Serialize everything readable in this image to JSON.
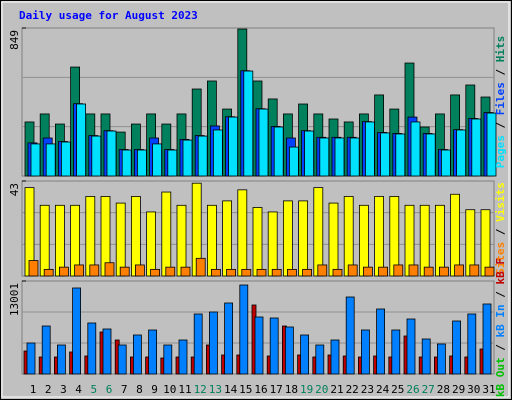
{
  "chart_data": [
    {
      "type": "bar",
      "title": "Daily usage for August 2023",
      "separator": " / ",
      "ylim": [
        0,
        849
      ],
      "yticks": [
        849
      ],
      "series": [
        {
          "name": "Hits",
          "color": "#00805c",
          "values": [
            310,
            356,
            298,
            625,
            356,
            356,
            252,
            298,
            356,
            298,
            356,
            499,
            545,
            384,
            843,
            545,
            442,
            356,
            413,
            356,
            327,
            310,
            356,
            465,
            384,
            648,
            281,
            356,
            465,
            522,
            453
          ]
        },
        {
          "name": "Files",
          "color": "#0040ff",
          "values": [
            190,
            218,
            198,
            415,
            232,
            260,
            152,
            152,
            218,
            152,
            210,
            232,
            287,
            340,
            604,
            386,
            284,
            218,
            260,
            222,
            222,
            222,
            312,
            250,
            244,
            338,
            244,
            152,
            266,
            330,
            364
          ]
        },
        {
          "name": "Pages",
          "color": "#00e0ff",
          "values": [
            184,
            184,
            195,
            413,
            229,
            258,
            149,
            149,
            184,
            149,
            206,
            229,
            264,
            338,
            602,
            384,
            281,
            166,
            258,
            218,
            218,
            218,
            310,
            247,
            241,
            310,
            241,
            149,
            264,
            327,
            361
          ]
        }
      ]
    },
    {
      "type": "bar",
      "separator": " / ",
      "ylim": [
        0,
        43
      ],
      "yticks": [
        43
      ],
      "series": [
        {
          "name": "Visits",
          "color": "#ffff00",
          "values": [
            40,
            32,
            32,
            32,
            36,
            36,
            33,
            36,
            29,
            38,
            32,
            42,
            32,
            34,
            39,
            31,
            29,
            34,
            34,
            40,
            33,
            36,
            32,
            36,
            36,
            32,
            32,
            32,
            37,
            30,
            30
          ]
        },
        {
          "name": "Sites",
          "color": "#ff8000",
          "values": [
            7,
            3,
            4,
            5,
            5,
            6,
            4,
            5,
            3,
            4,
            4,
            8,
            3,
            3,
            3,
            3,
            3,
            3,
            3,
            5,
            3,
            5,
            4,
            4,
            5,
            5,
            4,
            4,
            5,
            5,
            4
          ]
        }
      ]
    },
    {
      "type": "bar",
      "separator": " / ",
      "ylim": [
        0,
        13001
      ],
      "yticks": [
        13001
      ],
      "categories": [
        "1",
        "2",
        "3",
        "4",
        "5",
        "6",
        "7",
        "8",
        "9",
        "10",
        "11",
        "12",
        "13",
        "14",
        "15",
        "16",
        "17",
        "18",
        "19",
        "20",
        "21",
        "22",
        "23",
        "24",
        "25",
        "26",
        "27",
        "28",
        "29",
        "30",
        "31"
      ],
      "category_colors": [
        "#000000",
        "#000000",
        "#000000",
        "#000000",
        "#00805c",
        "#00805c",
        "#000000",
        "#000000",
        "#000000",
        "#000000",
        "#000000",
        "#00805c",
        "#00805c",
        "#000000",
        "#000000",
        "#000000",
        "#000000",
        "#000000",
        "#00805c",
        "#00805c",
        "#000000",
        "#000000",
        "#000000",
        "#000000",
        "#000000",
        "#00805c",
        "#00805c",
        "#000000",
        "#000000",
        "#000000",
        "#000000"
      ],
      "series": [
        {
          "name": "kB F",
          "color": "#c00000",
          "values": [
            3215,
            2377,
            2377,
            3076,
            2516,
            5872,
            4753,
            2377,
            2377,
            2237,
            2377,
            2377,
            4054,
            2656,
            2656,
            9646,
            2516,
            6710,
            2656,
            2377,
            2656,
            2516,
            2377,
            2516,
            2377,
            5312,
            2377,
            2377,
            2516,
            2377,
            3495
          ]
        },
        {
          "name": "kB In",
          "color": "#0080ff",
          "values": [
            4334,
            6710,
            4054,
            12023,
            7130,
            6291,
            4054,
            5452,
            6151,
            4054,
            4753,
            8388,
            8668,
            9926,
            12442,
            7969,
            7829,
            6571,
            5452,
            4054,
            4753,
            10765,
            6151,
            9087,
            6151,
            7689,
            4893,
            4194,
            7409,
            8388,
            9786
          ]
        },
        {
          "name": "kB Out",
          "color": "#00c000",
          "values": [
            0,
            0,
            0,
            0,
            0,
            0,
            0,
            0,
            0,
            0,
            0,
            0,
            0,
            0,
            0,
            0,
            0,
            0,
            0,
            0,
            0,
            0,
            0,
            0,
            0,
            0,
            0,
            0,
            0,
            0,
            0
          ]
        }
      ]
    }
  ]
}
